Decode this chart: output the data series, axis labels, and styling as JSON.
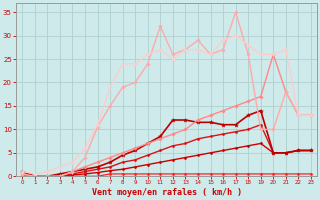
{
  "xlabel": "Vent moyen/en rafales ( km/h )",
  "xlim": [
    -0.5,
    23.5
  ],
  "ylim": [
    0,
    37
  ],
  "yticks": [
    0,
    5,
    10,
    15,
    20,
    25,
    30,
    35
  ],
  "xticks": [
    0,
    1,
    2,
    3,
    4,
    5,
    6,
    7,
    8,
    9,
    10,
    11,
    12,
    13,
    14,
    15,
    16,
    17,
    18,
    19,
    20,
    21,
    22,
    23
  ],
  "bg_color": "#ceeaea",
  "grid_color": "#b0d0d0",
  "lines": [
    {
      "x": [
        0,
        1,
        2,
        3,
        4,
        5,
        6,
        7,
        8,
        9,
        10,
        11,
        12,
        13,
        14,
        15,
        16,
        17,
        18,
        19,
        20,
        21,
        22,
        23
      ],
      "y": [
        0.5,
        0,
        0,
        0,
        0,
        0,
        0,
        0.5,
        0.5,
        0.5,
        0.5,
        0.5,
        0.5,
        0.5,
        0.5,
        0.5,
        0.5,
        0.5,
        0.5,
        0.5,
        0.5,
        0.5,
        0.5,
        0.5
      ],
      "color": "#ff2222",
      "lw": 0.9,
      "marker": "D",
      "ms": 1.5
    },
    {
      "x": [
        0,
        1,
        2,
        3,
        4,
        5,
        6,
        7,
        8,
        9,
        10,
        11,
        12,
        13,
        14,
        15,
        16,
        17,
        18,
        19,
        20,
        21,
        22,
        23
      ],
      "y": [
        0,
        0,
        0,
        0,
        0.3,
        0.5,
        0.8,
        1.2,
        1.5,
        2,
        2.5,
        3,
        3.5,
        4,
        4.5,
        5,
        5.5,
        6,
        6.5,
        7,
        5,
        5,
        5.5,
        5.5
      ],
      "color": "#cc0000",
      "lw": 1.0,
      "marker": "D",
      "ms": 1.5
    },
    {
      "x": [
        0,
        1,
        2,
        3,
        4,
        5,
        6,
        7,
        8,
        9,
        10,
        11,
        12,
        13,
        14,
        15,
        16,
        17,
        18,
        19,
        20,
        21,
        22,
        23
      ],
      "y": [
        0,
        0,
        0,
        0,
        0.5,
        1,
        1.5,
        2,
        3,
        3.5,
        4.5,
        5.5,
        6.5,
        7,
        8,
        8.5,
        9,
        9.5,
        10,
        11,
        5,
        5,
        5.5,
        5.5
      ],
      "color": "#dd1111",
      "lw": 1.0,
      "marker": "D",
      "ms": 1.5
    },
    {
      "x": [
        0,
        1,
        2,
        3,
        4,
        5,
        6,
        7,
        8,
        9,
        10,
        11,
        12,
        13,
        14,
        15,
        16,
        17,
        18,
        19,
        20,
        21,
        22,
        23
      ],
      "y": [
        1,
        0,
        0,
        0.5,
        1,
        1.5,
        2,
        3,
        4.5,
        5.5,
        7,
        8.5,
        12,
        12,
        11.5,
        11.5,
        11,
        11,
        13,
        14,
        5,
        5,
        5.5,
        5.5
      ],
      "color": "#bb0000",
      "lw": 1.2,
      "marker": "*",
      "ms": 3
    },
    {
      "x": [
        0,
        1,
        2,
        3,
        4,
        5,
        6,
        7,
        8,
        9,
        10,
        11,
        12,
        13,
        14,
        15,
        16,
        17,
        18,
        19,
        20,
        21,
        22,
        23
      ],
      "y": [
        0,
        0,
        0,
        0,
        1,
        2,
        3,
        4,
        5,
        6,
        7,
        8,
        9,
        10,
        12,
        13,
        14,
        15,
        16,
        17,
        26,
        18,
        13,
        13
      ],
      "color": "#ff8888",
      "lw": 1.0,
      "marker": "D",
      "ms": 1.8
    },
    {
      "x": [
        0,
        1,
        2,
        3,
        4,
        5,
        6,
        7,
        8,
        9,
        10,
        11,
        12,
        13,
        14,
        15,
        16,
        17,
        18,
        19,
        20,
        21,
        22,
        23
      ],
      "y": [
        0.5,
        0,
        0,
        0,
        1,
        4,
        10.5,
        15,
        19,
        20,
        24,
        32,
        26,
        27,
        29,
        26,
        27,
        35,
        26,
        10,
        10,
        18,
        13,
        13
      ],
      "color": "#ffaaaa",
      "lw": 1.0,
      "marker": "D",
      "ms": 1.8
    },
    {
      "x": [
        0,
        1,
        2,
        3,
        4,
        5,
        6,
        7,
        8,
        9,
        10,
        11,
        12,
        13,
        14,
        15,
        16,
        17,
        18,
        19,
        20,
        21,
        22,
        23
      ],
      "y": [
        1,
        0.5,
        1,
        2,
        3,
        6,
        11,
        19,
        24,
        24,
        26,
        27,
        25,
        27,
        27,
        26,
        29,
        30,
        28,
        26,
        26,
        27,
        13,
        13
      ],
      "color": "#ffcccc",
      "lw": 1.0,
      "marker": "D",
      "ms": 1.8
    }
  ],
  "tick_color": "#cc0000",
  "label_color": "#cc0000"
}
